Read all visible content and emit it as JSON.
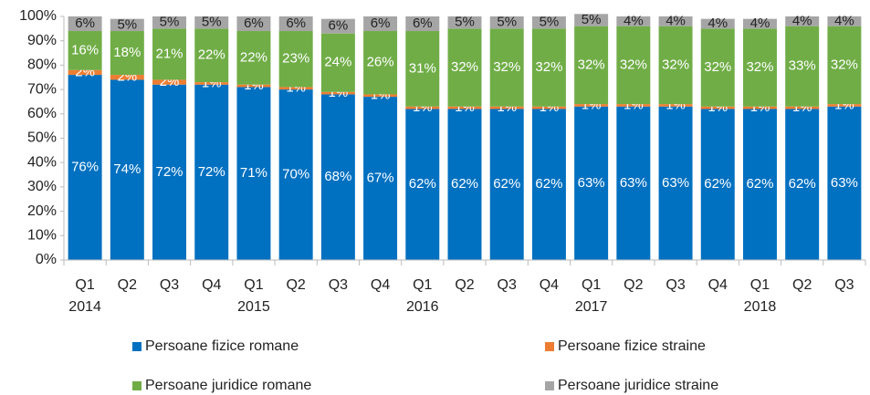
{
  "chart_data": {
    "type": "stacked_bar",
    "categories": [
      "Q1",
      "Q2",
      "Q3",
      "Q4",
      "Q1",
      "Q2",
      "Q3",
      "Q4",
      "Q1",
      "Q2",
      "Q3",
      "Q4",
      "Q1",
      "Q2",
      "Q3",
      "Q4",
      "Q1",
      "Q2",
      "Q3"
    ],
    "years": [
      "2014",
      null,
      null,
      null,
      "2015",
      null,
      null,
      null,
      "2016",
      null,
      null,
      null,
      "2017",
      null,
      null,
      null,
      "2018",
      null,
      null
    ],
    "series": [
      {
        "name": "Persoane fizice romane",
        "color": "#0070c0",
        "label_color": "#ffffff",
        "values": [
          76,
          74,
          72,
          72,
          71,
          70,
          68,
          67,
          62,
          62,
          62,
          62,
          63,
          63,
          63,
          62,
          62,
          62,
          63
        ],
        "value_labels": [
          "76%",
          "74%",
          "72%",
          "72%",
          "71%",
          "70%",
          "68%",
          "67%",
          "62%",
          "62%",
          "62%",
          "62%",
          "63%",
          "63%",
          "63%",
          "62%",
          "62%",
          "62%",
          "63%"
        ]
      },
      {
        "name": "Persoane fizice straine",
        "color": "#ed7d31",
        "label_color": "#ffffff",
        "values": [
          2,
          2,
          2,
          1,
          1,
          1,
          1,
          1,
          1,
          1,
          1,
          1,
          1,
          1,
          1,
          1,
          1,
          1,
          1
        ],
        "value_labels": [
          "2%",
          "2%",
          "2%",
          "1%",
          "1%",
          "1%",
          "1%",
          "1%",
          "1%",
          "1%",
          "1%",
          "1%",
          "1%",
          "1%",
          "1%",
          "1%",
          "1%",
          "1%",
          "1%"
        ]
      },
      {
        "name": "Persoane juridice romane",
        "color": "#70ad47",
        "label_color": "#ffffff",
        "values": [
          16,
          18,
          21,
          22,
          22,
          23,
          24,
          26,
          31,
          32,
          32,
          32,
          32,
          32,
          32,
          32,
          32,
          33,
          32
        ],
        "value_labels": [
          "16%",
          "18%",
          "21%",
          "22%",
          "22%",
          "23%",
          "24%",
          "26%",
          "31%",
          "32%",
          "32%",
          "32%",
          "32%",
          "32%",
          "32%",
          "32%",
          "32%",
          "33%",
          "32%"
        ]
      },
      {
        "name": "Persoane juridice straine",
        "color": "#a5a5a5",
        "label_color": "#222222",
        "values": [
          6,
          5,
          5,
          5,
          6,
          6,
          6,
          6,
          6,
          5,
          5,
          5,
          5,
          4,
          4,
          4,
          4,
          4,
          4
        ],
        "value_labels": [
          "6%",
          "5%",
          "5%",
          "5%",
          "6%",
          "6%",
          "6%",
          "6%",
          "6%",
          "5%",
          "5%",
          "5%",
          "5%",
          "4%",
          "4%",
          "4%",
          "4%",
          "4%",
          "4%"
        ]
      }
    ],
    "ylim": [
      0,
      100
    ],
    "yticks": [
      {
        "value": 0,
        "label": "0%"
      },
      {
        "value": 10,
        "label": "10%"
      },
      {
        "value": 20,
        "label": "20%"
      },
      {
        "value": 30,
        "label": "30%"
      },
      {
        "value": 40,
        "label": "40%"
      },
      {
        "value": 50,
        "label": "50%"
      },
      {
        "value": 60,
        "label": "60%"
      },
      {
        "value": 70,
        "label": "70%"
      },
      {
        "value": 80,
        "label": "80%"
      },
      {
        "value": 90,
        "label": "90%"
      },
      {
        "value": 100,
        "label": "100%"
      }
    ],
    "legend": "bottom"
  }
}
